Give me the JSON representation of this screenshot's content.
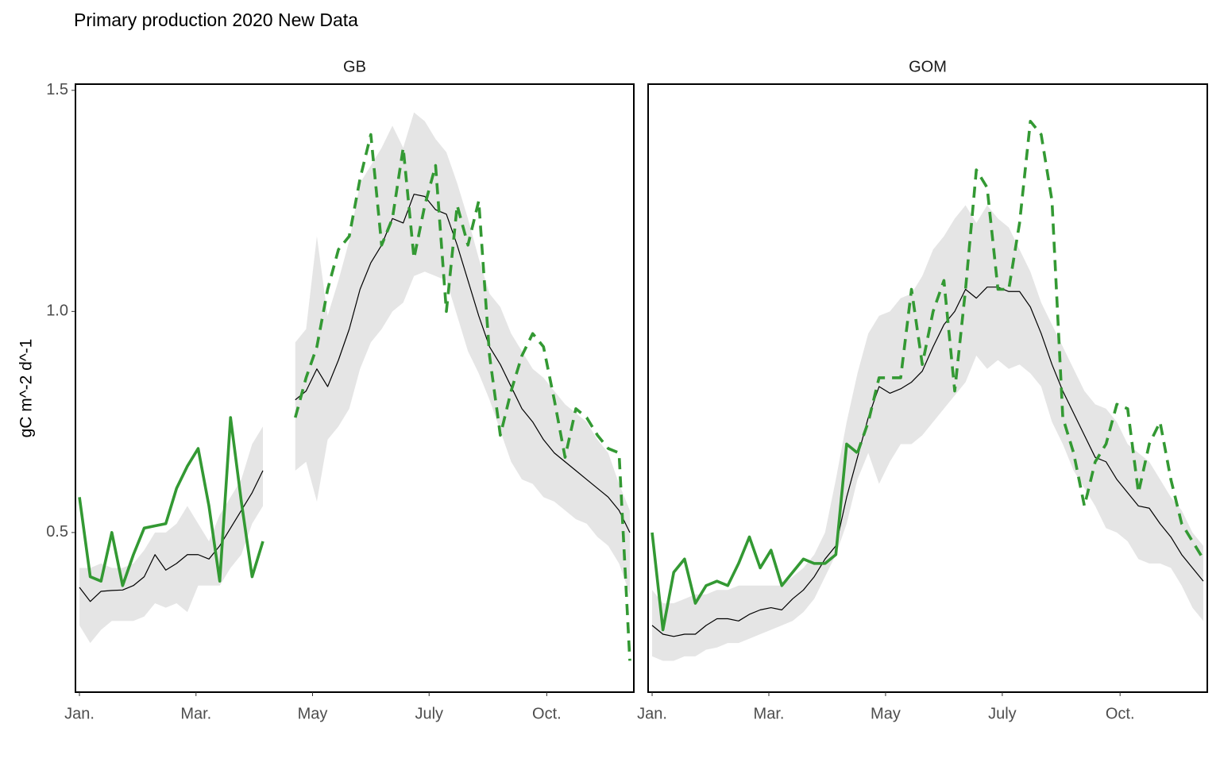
{
  "title": "Primary production 2020 New Data",
  "ylabel": "gC m^-2 d^-1",
  "chart_data": [
    {
      "type": "line",
      "title": "GB",
      "x": [
        1,
        2,
        3,
        4,
        5,
        6,
        7,
        8,
        9,
        10,
        11,
        12,
        13,
        14,
        15,
        16,
        17,
        18,
        19,
        20,
        21,
        22,
        23,
        24,
        25,
        26,
        27,
        28,
        29,
        30,
        31,
        32,
        33,
        34,
        35,
        36,
        37,
        38,
        39,
        40,
        41,
        42,
        43,
        44,
        45,
        46,
        47,
        48,
        49,
        50,
        51,
        52
      ],
      "xlim": [
        0.63,
        52.37
      ],
      "xticks": [
        {
          "value": 1,
          "label": "Jan."
        },
        {
          "value": 11.8,
          "label": "Mar."
        },
        {
          "value": 22.6,
          "label": "May"
        },
        {
          "value": 33.4,
          "label": "July"
        },
        {
          "value": 44.3,
          "label": "Oct."
        }
      ],
      "ylim": [
        0.139,
        1.514
      ],
      "yticks": [
        0.5,
        {
          "value": 1,
          "label": "1.0"
        },
        1.5
      ],
      "band": {
        "color": "#e5e5e5",
        "lower": [
          0.29,
          0.25,
          0.28,
          0.3,
          0.3,
          0.3,
          0.31,
          0.34,
          0.33,
          0.34,
          0.32,
          0.38,
          0.38,
          0.38,
          0.42,
          0.45,
          0.52,
          0.56,
          null,
          null,
          0.64,
          0.66,
          0.57,
          0.71,
          0.74,
          0.78,
          0.87,
          0.93,
          0.96,
          1.0,
          1.02,
          1.08,
          1.09,
          1.08,
          1.07,
          0.99,
          0.91,
          0.86,
          0.8,
          0.73,
          0.66,
          0.62,
          0.61,
          0.58,
          0.57,
          0.55,
          0.53,
          0.52,
          0.49,
          0.47,
          0.43,
          0.36
        ],
        "upper": [
          0.42,
          0.42,
          0.43,
          0.42,
          0.42,
          0.43,
          0.46,
          0.5,
          0.5,
          0.52,
          0.56,
          0.52,
          0.48,
          0.54,
          0.58,
          0.62,
          0.7,
          0.74,
          null,
          null,
          0.93,
          0.96,
          1.17,
          0.99,
          1.07,
          1.16,
          1.29,
          1.33,
          1.37,
          1.42,
          1.37,
          1.45,
          1.43,
          1.39,
          1.36,
          1.29,
          1.21,
          1.12,
          1.04,
          1.01,
          0.95,
          0.91,
          0.87,
          0.85,
          0.82,
          0.79,
          0.77,
          0.75,
          0.71,
          0.68,
          0.61,
          0.55
        ]
      },
      "series": [
        {
          "color": "#000000",
          "style": "thin",
          "values": [
            0.376,
            0.344,
            0.367,
            0.369,
            0.37,
            0.38,
            0.4,
            0.45,
            0.415,
            0.43,
            0.45,
            0.45,
            0.44,
            0.47,
            0.51,
            0.55,
            0.59,
            0.64,
            null,
            null,
            0.8,
            0.82,
            0.87,
            0.83,
            0.89,
            0.96,
            1.05,
            1.11,
            1.15,
            1.21,
            1.2,
            1.265,
            1.26,
            1.23,
            1.22,
            1.15,
            1.07,
            0.99,
            0.92,
            0.88,
            0.83,
            0.78,
            0.75,
            0.71,
            0.68,
            0.66,
            0.64,
            0.62,
            0.6,
            0.58,
            0.55,
            0.5
          ]
        },
        {
          "color": "#339933",
          "style": "solid",
          "values": [
            0.58,
            0.4,
            0.39,
            0.5,
            0.38,
            0.45,
            0.51,
            0.515,
            0.52,
            0.6,
            0.65,
            0.69,
            0.56,
            0.39,
            0.76,
            0.57,
            0.4,
            0.48,
            null,
            null,
            null,
            null,
            null,
            null,
            null,
            null,
            null,
            null,
            null,
            null,
            null,
            null,
            null,
            null,
            null,
            null,
            null,
            null,
            null,
            null,
            null,
            null,
            null,
            null,
            null,
            null,
            null,
            null,
            null,
            null,
            null,
            null
          ]
        },
        {
          "color": "#339933",
          "style": "dashed",
          "values": [
            null,
            null,
            null,
            null,
            null,
            null,
            null,
            null,
            null,
            null,
            null,
            null,
            null,
            null,
            null,
            null,
            null,
            null,
            null,
            null,
            0.76,
            0.85,
            0.92,
            1.05,
            1.14,
            1.17,
            1.3,
            1.4,
            1.15,
            1.21,
            1.37,
            1.12,
            1.24,
            1.33,
            1.0,
            1.24,
            1.15,
            1.25,
            0.9,
            0.72,
            0.82,
            0.9,
            0.95,
            0.92,
            0.8,
            0.67,
            0.78,
            0.76,
            0.72,
            0.69,
            0.68,
            0.21
          ]
        }
      ]
    },
    {
      "type": "line",
      "title": "GOM",
      "x": [
        1,
        2,
        3,
        4,
        5,
        6,
        7,
        8,
        9,
        10,
        11,
        12,
        13,
        14,
        15,
        16,
        17,
        18,
        19,
        20,
        21,
        22,
        23,
        24,
        25,
        26,
        27,
        28,
        29,
        30,
        31,
        32,
        33,
        34,
        35,
        36,
        37,
        38,
        39,
        40,
        41,
        42,
        43,
        44,
        45,
        46,
        47,
        48,
        49,
        50,
        51,
        52
      ],
      "xlim": [
        0.63,
        52.37
      ],
      "xticks": [
        {
          "value": 1,
          "label": "Jan."
        },
        {
          "value": 11.8,
          "label": "Mar."
        },
        {
          "value": 22.6,
          "label": "May"
        },
        {
          "value": 33.4,
          "label": "July"
        },
        {
          "value": 44.3,
          "label": "Oct."
        }
      ],
      "ylim": [
        0.139,
        1.514
      ],
      "band": {
        "color": "#e5e5e5",
        "lower": [
          0.22,
          0.21,
          0.21,
          0.22,
          0.22,
          0.235,
          0.24,
          0.25,
          0.25,
          0.26,
          0.27,
          0.28,
          0.29,
          0.3,
          0.32,
          0.35,
          0.4,
          0.45,
          0.52,
          0.62,
          0.68,
          0.61,
          0.66,
          0.7,
          0.7,
          0.72,
          0.75,
          0.78,
          0.81,
          0.84,
          0.9,
          0.87,
          0.89,
          0.87,
          0.88,
          0.86,
          0.83,
          0.75,
          0.7,
          0.64,
          0.6,
          0.56,
          0.51,
          0.5,
          0.48,
          0.44,
          0.43,
          0.43,
          0.42,
          0.38,
          0.33,
          0.3
        ],
        "upper": [
          0.37,
          0.34,
          0.34,
          0.35,
          0.36,
          0.36,
          0.37,
          0.37,
          0.38,
          0.38,
          0.38,
          0.38,
          0.38,
          0.4,
          0.42,
          0.45,
          0.5,
          0.62,
          0.75,
          0.86,
          0.95,
          0.99,
          1.0,
          1.03,
          1.04,
          1.08,
          1.14,
          1.17,
          1.21,
          1.24,
          1.2,
          1.24,
          1.21,
          1.19,
          1.14,
          1.09,
          1.02,
          0.97,
          0.92,
          0.87,
          0.82,
          0.79,
          0.78,
          0.75,
          0.7,
          0.68,
          0.66,
          0.62,
          0.58,
          0.55,
          0.5,
          0.47
        ]
      },
      "series": [
        {
          "color": "#000000",
          "style": "thin",
          "values": [
            0.29,
            0.27,
            0.265,
            0.27,
            0.27,
            0.29,
            0.305,
            0.305,
            0.3,
            0.315,
            0.325,
            0.33,
            0.325,
            0.35,
            0.37,
            0.4,
            0.44,
            0.47,
            0.58,
            0.67,
            0.76,
            0.83,
            0.815,
            0.825,
            0.84,
            0.865,
            0.92,
            0.97,
            1.0,
            1.05,
            1.03,
            1.055,
            1.055,
            1.045,
            1.045,
            1.01,
            0.95,
            0.88,
            0.82,
            0.77,
            0.72,
            0.67,
            0.66,
            0.62,
            0.59,
            0.56,
            0.555,
            0.52,
            0.49,
            0.45,
            0.42,
            0.39
          ]
        },
        {
          "color": "#339933",
          "style": "solid",
          "values": [
            0.5,
            0.28,
            0.41,
            0.44,
            0.34,
            0.38,
            0.39,
            0.38,
            0.43,
            0.49,
            0.42,
            0.46,
            0.38,
            0.41,
            0.44,
            0.43,
            0.43,
            0.45,
            0.7,
            0.68,
            null,
            null,
            null,
            null,
            null,
            null,
            null,
            null,
            null,
            null,
            null,
            null,
            null,
            null,
            null,
            null,
            null,
            null,
            null,
            null,
            null,
            null,
            null,
            null,
            null,
            null,
            null,
            null,
            null,
            null,
            null,
            null
          ]
        },
        {
          "color": "#339933",
          "style": "dashed",
          "values": [
            null,
            null,
            null,
            null,
            null,
            null,
            null,
            null,
            null,
            null,
            null,
            null,
            null,
            null,
            null,
            null,
            null,
            null,
            null,
            0.68,
            0.75,
            0.85,
            0.85,
            0.85,
            1.05,
            0.88,
            1.0,
            1.07,
            0.82,
            1.05,
            1.32,
            1.28,
            1.05,
            1.05,
            1.2,
            1.43,
            1.4,
            1.25,
            0.76,
            0.68,
            0.56,
            0.66,
            0.7,
            0.79,
            0.78,
            0.59,
            0.7,
            0.75,
            0.62,
            0.52,
            0.48,
            0.44
          ]
        }
      ]
    }
  ]
}
